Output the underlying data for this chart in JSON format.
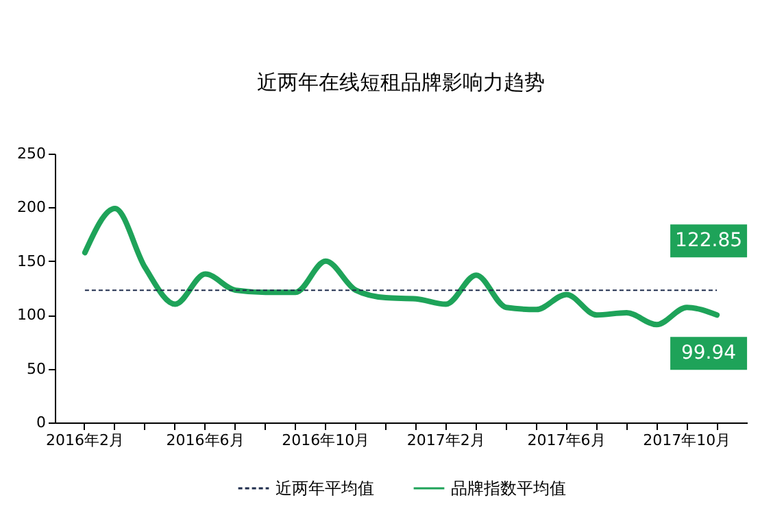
{
  "chart_data": {
    "type": "line",
    "title": "近两年在线短租品牌影响力趋势",
    "categories": [
      "2016年2月",
      null,
      null,
      null,
      "2016年6月",
      null,
      null,
      null,
      "2016年10月",
      null,
      null,
      null,
      "2017年2月",
      null,
      null,
      null,
      "2017年6月",
      null,
      null,
      null,
      "2017年10月",
      null
    ],
    "series": [
      {
        "name": "品牌指数平均值",
        "color": "#1ea359",
        "values": [
          158,
          199,
          144,
          110,
          138,
          123,
          121,
          121,
          150,
          123,
          116,
          115,
          110,
          137,
          107,
          105,
          119,
          100,
          102,
          91,
          107,
          99.94
        ]
      }
    ],
    "ylim": [
      0,
      250
    ],
    "yticks": [
      0,
      50,
      100,
      150,
      200,
      250
    ],
    "grid": false,
    "legend": "bottom",
    "marker": "none",
    "line_style": "solid",
    "ref_lines": [
      {
        "axis": "y",
        "value": 122.85,
        "label": "近两年平均值",
        "color": "#1f2d4d",
        "line_style": "dashed"
      }
    ],
    "annotations": [
      {
        "text": "122.85",
        "y": 122.85
      },
      {
        "text": "99.94",
        "y": 99.94
      }
    ]
  }
}
